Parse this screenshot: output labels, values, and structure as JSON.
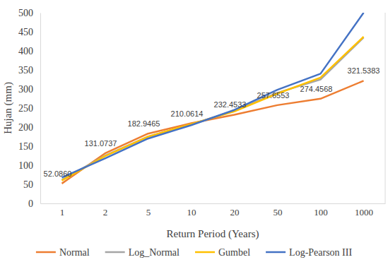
{
  "chart_data": {
    "type": "line",
    "x_label": "Return Period (Years)",
    "y_label": "Hujan (mm)",
    "categories": [
      "1",
      "2",
      "5",
      "10",
      "20",
      "50",
      "100",
      "1000"
    ],
    "ylim": [
      0,
      500
    ],
    "yticks": [
      0,
      50,
      100,
      150,
      200,
      250,
      300,
      350,
      400,
      450,
      500
    ],
    "grid": false,
    "legend": "bottom",
    "series": [
      {
        "name": "Normal",
        "color": "#ed7d31",
        "data_labels": true,
        "values": [
          52.086,
          131.0737,
          182.9465,
          210.0614,
          232.4533,
          257.6553,
          274.4568,
          321.5383
        ],
        "value_labels": [
          "52.0860",
          "131.0737",
          "182.9465",
          "210.0614",
          "232.4533",
          "257.6553",
          "274.4568",
          "321.5383"
        ]
      },
      {
        "name": "Log_Normal",
        "color": "#a5a5a5",
        "values": [
          62,
          125,
          175,
          207,
          243,
          290,
          325,
          435
        ]
      },
      {
        "name": "Gumbel",
        "color": "#ffc000",
        "values": [
          60,
          124,
          175,
          208,
          241,
          288,
          330,
          437
        ]
      },
      {
        "name": "Log-Pearson III",
        "color": "#4472c4",
        "values": [
          68,
          118,
          170,
          205,
          245,
          298,
          340,
          500
        ]
      }
    ]
  }
}
